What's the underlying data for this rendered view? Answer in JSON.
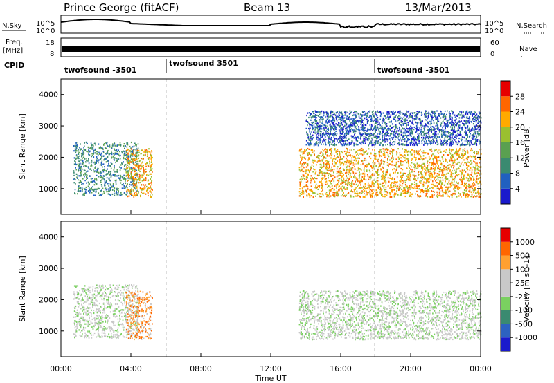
{
  "header": {
    "station": "Prince George (fitACF)",
    "beam": "Beam 13",
    "date": "13/Mar/2013"
  },
  "summary_panels": {
    "nsky_label": "N.Sky",
    "nsearch_label": "N.Search",
    "noise_ticks": [
      "10^5",
      "10^0"
    ],
    "freq_label_1": "Freq.",
    "freq_label_2": "[MHz]",
    "freq_ticks": [
      "18",
      "8"
    ],
    "nave_label": "Nave",
    "nave_ticks": [
      "60",
      "0"
    ],
    "cpid_label": "CPID",
    "cpid_segments": [
      {
        "name": "twofsound -3501",
        "start_hour": 0
      },
      {
        "name": "twofsound 3501",
        "start_hour": 6
      },
      {
        "name": "twofsound -3501",
        "start_hour": 18
      }
    ]
  },
  "axes": {
    "ylabel": "Slant Range [km]",
    "yticks": [
      "1000",
      "2000",
      "3000",
      "4000"
    ],
    "xlabel": "Time UT",
    "xticks": [
      "00:00",
      "04:00",
      "08:00",
      "12:00",
      "16:00",
      "20:00",
      "00:00"
    ]
  },
  "chart_data": [
    {
      "type": "heatmap",
      "title": "Power",
      "x_range_hours": [
        0,
        24
      ],
      "y_range_km": [
        180,
        4500
      ],
      "colorbar_label": "Power [dB]",
      "colorbar_ticks": [
        "4",
        "8",
        "12",
        "16",
        "20",
        "24",
        "28"
      ],
      "colorscale": [
        "#1a1acc",
        "#2060c0",
        "#3a8a70",
        "#5aa050",
        "#9ac030",
        "#ffaa00",
        "#ff6600",
        "#e60000"
      ],
      "regions": [
        {
          "t0": 0.7,
          "t1": 4.4,
          "r0": 800,
          "r1": 2500,
          "level": 2
        },
        {
          "t0": 3.7,
          "t1": 5.2,
          "r0": 750,
          "r1": 2300,
          "level": 5
        },
        {
          "t0": 13.6,
          "t1": 24,
          "r0": 750,
          "r1": 2300,
          "level": 5
        },
        {
          "t0": 14.0,
          "t1": 24,
          "r0": 2400,
          "r1": 3500,
          "level": 1
        }
      ]
    },
    {
      "type": "heatmap",
      "title": "Velocity",
      "x_range_hours": [
        0,
        24
      ],
      "y_range_km": [
        180,
        4500
      ],
      "colorbar_label": "Velocity [m s^-1]",
      "colorbar_ticks": [
        "1000",
        "500",
        "100",
        "25",
        "-25",
        "-100",
        "-500",
        "-1000"
      ],
      "colorscale": [
        "#1a1acc",
        "#2d62c0",
        "#3a8a70",
        "#7ad060",
        "#c8c8c8",
        "#c8c8c8",
        "#ffa030",
        "#ff6600",
        "#e60000"
      ],
      "regions": [
        {
          "t0": 0.7,
          "t1": 4.4,
          "r0": 800,
          "r1": 2500,
          "level": 4
        },
        {
          "t0": 3.7,
          "t1": 5.2,
          "r0": 750,
          "r1": 2300,
          "level": 6
        },
        {
          "t0": 13.6,
          "t1": 24,
          "r0": 750,
          "r1": 2300,
          "level": 4
        }
      ]
    }
  ]
}
